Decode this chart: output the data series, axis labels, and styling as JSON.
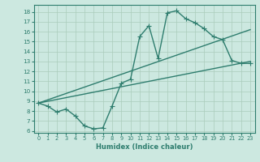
{
  "xlabel": "Humidex (Indice chaleur)",
  "bg_color": "#cce8e0",
  "line_color": "#2e7d6e",
  "grid_color": "#aaccbb",
  "xlim": [
    -0.5,
    23.5
  ],
  "ylim": [
    5.8,
    18.7
  ],
  "xticks": [
    0,
    1,
    2,
    3,
    4,
    5,
    6,
    7,
    8,
    9,
    10,
    11,
    12,
    13,
    14,
    15,
    16,
    17,
    18,
    19,
    20,
    21,
    22,
    23
  ],
  "yticks": [
    6,
    7,
    8,
    9,
    10,
    11,
    12,
    13,
    14,
    15,
    16,
    17,
    18
  ],
  "line1_x": [
    0,
    1,
    2,
    3,
    4,
    5,
    6,
    7,
    8,
    9,
    10,
    11,
    12,
    13,
    14,
    15,
    16,
    17,
    18,
    19,
    20,
    21,
    22,
    23
  ],
  "line1_y": [
    8.8,
    8.5,
    7.9,
    8.2,
    7.5,
    6.5,
    6.2,
    6.3,
    8.5,
    10.8,
    11.2,
    15.5,
    16.6,
    13.3,
    17.9,
    18.1,
    17.3,
    16.9,
    16.3,
    15.5,
    15.2,
    13.1,
    12.8,
    12.8
  ],
  "line2_x": [
    0,
    23
  ],
  "line2_y": [
    8.8,
    16.2
  ],
  "line3_x": [
    0,
    23
  ],
  "line3_y": [
    8.8,
    13.0
  ],
  "marker_size": 2.5,
  "line_width": 1.0
}
